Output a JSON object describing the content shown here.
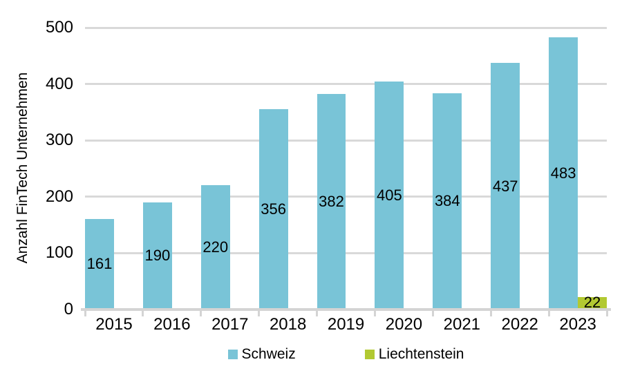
{
  "chart_data": {
    "type": "bar",
    "title": "",
    "categories": [
      "2015",
      "2016",
      "2017",
      "2018",
      "2019",
      "2020",
      "2021",
      "2022",
      "2023"
    ],
    "series": [
      {
        "name": "Schweiz",
        "color": "#79c4d7",
        "values": [
          161,
          190,
          220,
          356,
          382,
          405,
          384,
          437,
          483
        ]
      },
      {
        "name": "Liechtenstein",
        "color": "#b2c932",
        "values": [
          null,
          null,
          null,
          null,
          null,
          null,
          null,
          null,
          22
        ]
      }
    ],
    "xlabel": "",
    "ylabel": "Anzahl FinTech Unternehmen",
    "ylim": [
      0,
      500
    ],
    "yticks": [
      0,
      100,
      200,
      300,
      400,
      500
    ],
    "grid": true,
    "data_labels": true,
    "legend_position": "bottom",
    "colors": {
      "gridline": "#d9d9d9",
      "axisline": "#d4d4d4",
      "label_text": "#000000",
      "background": "#ffffff"
    }
  }
}
